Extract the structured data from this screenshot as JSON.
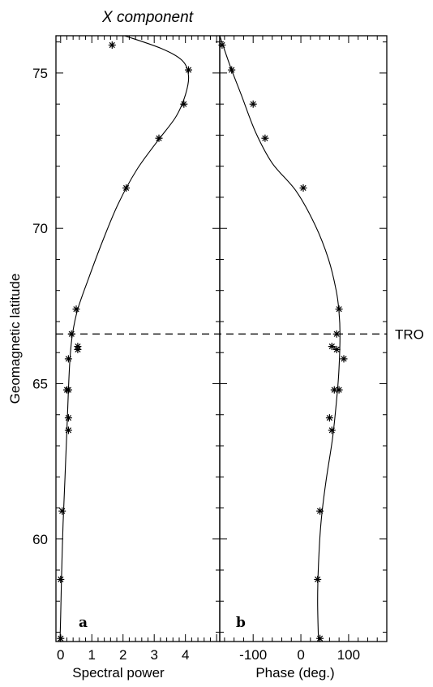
{
  "chart_data": [
    {
      "type": "scatter",
      "panel_label": "a",
      "title": "X component",
      "xlabel": "Spectral power",
      "ylabel": "Geomagnetic latitude",
      "xlim": [
        -0.15,
        5.1
      ],
      "ylim": [
        56.7,
        76.2
      ],
      "xticks": [
        0,
        1,
        2,
        3,
        4
      ],
      "yticks": [
        60,
        65,
        70,
        75
      ],
      "points": [
        [
          1.65,
          75.9
        ],
        [
          4.1,
          75.1
        ],
        [
          3.95,
          74.0
        ],
        [
          3.15,
          72.9
        ],
        [
          2.1,
          71.3
        ],
        [
          0.5,
          67.4
        ],
        [
          0.35,
          66.6
        ],
        [
          0.55,
          66.2
        ],
        [
          0.55,
          66.1
        ],
        [
          0.25,
          65.8
        ],
        [
          0.2,
          64.8
        ],
        [
          0.25,
          64.8
        ],
        [
          0.25,
          63.9
        ],
        [
          0.25,
          63.5
        ],
        [
          0.05,
          60.9
        ],
        [
          0.0,
          58.7
        ],
        [
          0.0,
          56.8
        ]
      ],
      "curve": [
        [
          2.05,
          76.2
        ],
        [
          3.2,
          75.8
        ],
        [
          3.9,
          75.4
        ],
        [
          4.1,
          74.9
        ],
        [
          4.0,
          74.3
        ],
        [
          3.7,
          73.6
        ],
        [
          3.1,
          72.8
        ],
        [
          2.45,
          71.9
        ],
        [
          1.85,
          70.8
        ],
        [
          1.35,
          69.6
        ],
        [
          0.9,
          68.4
        ],
        [
          0.55,
          67.4
        ],
        [
          0.38,
          66.6
        ],
        [
          0.3,
          65.8
        ],
        [
          0.25,
          64.8
        ],
        [
          0.2,
          63.5
        ],
        [
          0.14,
          62.0
        ],
        [
          0.08,
          60.5
        ],
        [
          0.03,
          58.8
        ],
        [
          0.0,
          57.5
        ],
        [
          -0.02,
          56.7
        ]
      ]
    },
    {
      "type": "scatter",
      "panel_label": "b",
      "xlabel": "Phase (deg.)",
      "xlim": [
        -170,
        180
      ],
      "ylim": [
        56.7,
        76.2
      ],
      "xticks": [
        -100,
        0,
        100
      ],
      "hline": {
        "y": 66.6,
        "label": "TRO"
      },
      "points": [
        [
          -165,
          75.9
        ],
        [
          -145,
          75.1
        ],
        [
          -100,
          74.0
        ],
        [
          -75,
          72.9
        ],
        [
          5,
          71.3
        ],
        [
          80,
          67.4
        ],
        [
          75,
          66.6
        ],
        [
          65,
          66.2
        ],
        [
          75,
          66.1
        ],
        [
          90,
          65.8
        ],
        [
          70,
          64.8
        ],
        [
          80,
          64.8
        ],
        [
          60,
          63.9
        ],
        [
          65,
          63.5
        ],
        [
          40,
          60.9
        ],
        [
          35,
          58.7
        ],
        [
          40,
          56.8
        ]
      ],
      "curve": [
        [
          -170,
          76.2
        ],
        [
          -150,
          75.3
        ],
        [
          -125,
          74.3
        ],
        [
          -95,
          73.1
        ],
        [
          -60,
          72.1
        ],
        [
          -10,
          71.2
        ],
        [
          30,
          70.1
        ],
        [
          58,
          69.0
        ],
        [
          74,
          68.0
        ],
        [
          80,
          67.3
        ],
        [
          82,
          66.6
        ],
        [
          80,
          65.5
        ],
        [
          75,
          64.5
        ],
        [
          66,
          63.2
        ],
        [
          52,
          61.8
        ],
        [
          42,
          60.5
        ],
        [
          37,
          59.2
        ],
        [
          35,
          58.0
        ],
        [
          37,
          56.7
        ]
      ]
    }
  ]
}
